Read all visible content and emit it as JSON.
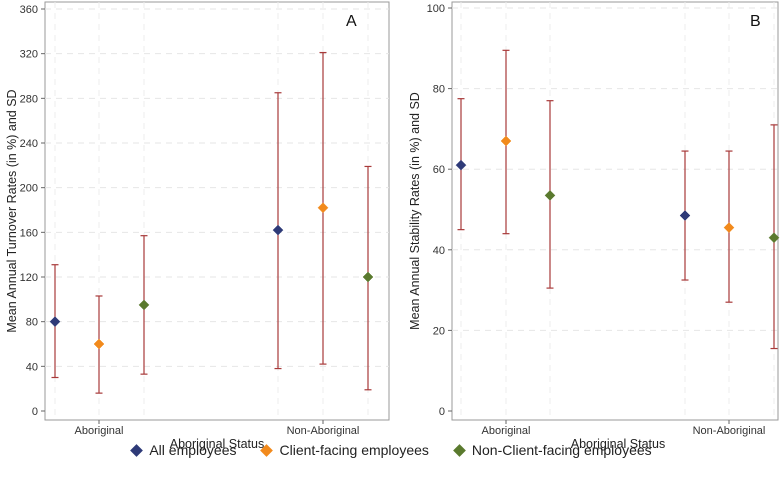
{
  "chart_data": [
    {
      "type": "scatter",
      "panel_label": "A",
      "title": "",
      "xlabel": "Aboriginal Status",
      "ylabel": "Mean Annual Turnover Rates (in %) and SD",
      "categories": [
        "Aboriginal",
        "Non-Aboriginal"
      ],
      "ylim": [
        0,
        360
      ],
      "yticks": [
        0,
        40,
        80,
        120,
        160,
        200,
        240,
        280,
        320,
        360
      ],
      "grid": true,
      "series": [
        {
          "name": "All employees",
          "color": "#2e3a78",
          "values": [
            80,
            162
          ],
          "lower": [
            30,
            38
          ],
          "upper": [
            131,
            285
          ]
        },
        {
          "name": "Client-facing employees",
          "color": "#f28a1c",
          "values": [
            60,
            182
          ],
          "lower": [
            16,
            42
          ],
          "upper": [
            103,
            321
          ]
        },
        {
          "name": "Non-Client-facing employees",
          "color": "#5a7a2e",
          "values": [
            95,
            120
          ],
          "lower": [
            33,
            19
          ],
          "upper": [
            157,
            219
          ]
        }
      ]
    },
    {
      "type": "scatter",
      "panel_label": "B",
      "title": "",
      "xlabel": "Aboriginal Status",
      "ylabel": "Mean Annual Stability Rates (in %) and SD",
      "categories": [
        "Aboriginal",
        "Non-Aboriginal"
      ],
      "ylim": [
        0,
        100
      ],
      "yticks": [
        0,
        20,
        40,
        60,
        80,
        100
      ],
      "grid": true,
      "series": [
        {
          "name": "All employees",
          "color": "#2e3a78",
          "values": [
            61,
            48.5
          ],
          "lower": [
            45,
            32.5
          ],
          "upper": [
            77.5,
            64.5
          ]
        },
        {
          "name": "Client-facing employees",
          "color": "#f28a1c",
          "values": [
            67,
            45.5
          ],
          "lower": [
            44,
            27
          ],
          "upper": [
            89.5,
            64.5
          ]
        },
        {
          "name": "Non-Client-facing employees",
          "color": "#5a7a2e",
          "values": [
            53.5,
            43
          ],
          "lower": [
            30.5,
            15.5
          ],
          "upper": [
            77,
            71
          ]
        }
      ]
    }
  ],
  "legend": {
    "items": [
      {
        "label": "All employees",
        "color": "#2e3a78"
      },
      {
        "label": "Client-facing employees",
        "color": "#f28a1c"
      },
      {
        "label": "Non-Client-facing employees",
        "color": "#5a7a2e"
      }
    ]
  },
  "errorbar_color": "#a83a3a"
}
